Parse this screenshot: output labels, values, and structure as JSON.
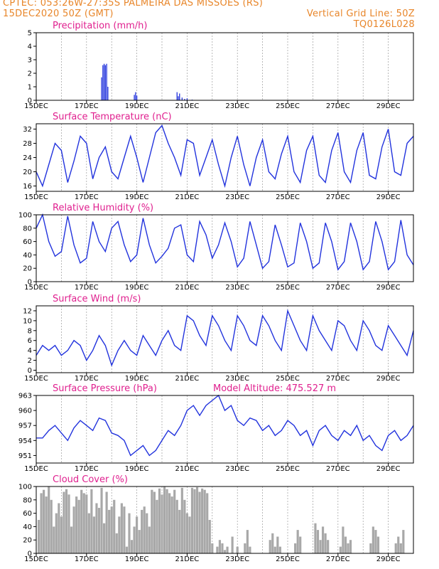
{
  "header": {
    "line1_left": "CPTEC:  053:26W-27:35S  PALMEIRA DAS MISSOES (RS)",
    "line2_left": "15DEC2020 50Z (GMT)",
    "line1_right": "Vertical Grid Line: 50Z",
    "line2_right": "TQ0126L028"
  },
  "colors": {
    "header": "#e8862a",
    "title": "#e0208f",
    "series": "#2233dd",
    "cloud": "#a8a8a8",
    "grid": "#9a9a9a"
  },
  "x_axis": {
    "ticks": [
      "15DEC",
      "17DEC",
      "19DEC",
      "21DEC",
      "23DEC",
      "25DEC",
      "27DEC",
      "29DEC"
    ],
    "start_day": 15,
    "end_day": 30
  },
  "chart_data": [
    {
      "type": "bar",
      "title": "Precipitation (mm/h)",
      "ylim": [
        0,
        5
      ],
      "yticks": [
        0,
        1,
        2,
        3,
        4,
        5
      ],
      "x": [
        17.6,
        17.65,
        17.7,
        17.75,
        17.8,
        17.85,
        18.9,
        18.95,
        19.0,
        20.6,
        20.65,
        20.7,
        20.8,
        20.9,
        21.0,
        21.2
      ],
      "values": [
        1.7,
        2.6,
        2.7,
        2.6,
        2.7,
        1.0,
        0.4,
        0.6,
        0.35,
        0.6,
        0.3,
        0.5,
        0.2,
        0.1,
        0.15,
        0.05
      ]
    },
    {
      "type": "line",
      "title": "Surface Temperature (nC)",
      "ylim": [
        14.5,
        33.5
      ],
      "yticks": [
        16,
        20,
        24,
        28,
        32
      ],
      "x": [
        15.0,
        15.25,
        15.5,
        15.75,
        16.0,
        16.25,
        16.5,
        16.75,
        17.0,
        17.25,
        17.5,
        17.75,
        18.0,
        18.25,
        18.5,
        18.75,
        19.0,
        19.25,
        19.5,
        19.75,
        20.0,
        20.25,
        20.5,
        20.75,
        21.0,
        21.25,
        21.5,
        21.75,
        22.0,
        22.25,
        22.5,
        22.75,
        23.0,
        23.25,
        23.5,
        23.75,
        24.0,
        24.25,
        24.5,
        24.75,
        25.0,
        25.25,
        25.5,
        25.75,
        26.0,
        26.25,
        26.5,
        26.75,
        27.0,
        27.25,
        27.5,
        27.75,
        28.0,
        28.25,
        28.5,
        28.75,
        29.0,
        29.25,
        29.5,
        29.75,
        30.0
      ],
      "values": [
        20,
        16,
        22,
        28,
        26,
        17,
        23,
        30,
        28,
        18,
        24,
        27,
        20,
        18,
        24,
        30,
        24,
        17,
        24,
        31,
        33,
        28,
        24,
        19,
        29,
        28,
        19,
        24,
        29,
        22,
        16,
        24,
        30,
        22,
        16,
        24,
        29,
        20,
        18,
        25,
        30,
        20,
        17,
        26,
        30,
        19,
        17,
        26,
        31,
        20,
        17,
        26,
        31,
        19,
        18,
        27,
        32,
        20,
        19,
        28,
        30
      ]
    },
    {
      "type": "line",
      "title": "Relative Humidity (%)",
      "ylim": [
        0,
        100
      ],
      "yticks": [
        0,
        20,
        40,
        60,
        80,
        100
      ],
      "x": [
        15.0,
        15.25,
        15.5,
        15.75,
        16.0,
        16.25,
        16.5,
        16.75,
        17.0,
        17.25,
        17.5,
        17.75,
        18.0,
        18.25,
        18.5,
        18.75,
        19.0,
        19.25,
        19.5,
        19.75,
        20.0,
        20.25,
        20.5,
        20.75,
        21.0,
        21.25,
        21.5,
        21.75,
        22.0,
        22.25,
        22.5,
        22.75,
        23.0,
        23.25,
        23.5,
        23.75,
        24.0,
        24.25,
        24.5,
        24.75,
        25.0,
        25.25,
        25.5,
        25.75,
        26.0,
        26.25,
        26.5,
        26.75,
        27.0,
        27.25,
        27.5,
        27.75,
        28.0,
        28.25,
        28.5,
        28.75,
        29.0,
        29.25,
        29.5,
        29.75,
        30.0
      ],
      "values": [
        80,
        100,
        60,
        38,
        45,
        98,
        55,
        28,
        35,
        90,
        60,
        45,
        80,
        90,
        55,
        30,
        40,
        95,
        55,
        28,
        38,
        50,
        80,
        85,
        40,
        30,
        90,
        70,
        35,
        55,
        88,
        60,
        22,
        35,
        90,
        55,
        20,
        30,
        85,
        55,
        22,
        28,
        88,
        60,
        20,
        28,
        88,
        60,
        18,
        30,
        88,
        60,
        18,
        30,
        90,
        60,
        18,
        30,
        92,
        40,
        25
      ]
    },
    {
      "type": "line",
      "title": "Surface Wind (m/s)",
      "ylim": [
        -0.5,
        13
      ],
      "yticks": [
        0,
        2,
        4,
        6,
        8,
        10,
        12
      ],
      "x": [
        15.0,
        15.25,
        15.5,
        15.75,
        16.0,
        16.25,
        16.5,
        16.75,
        17.0,
        17.25,
        17.5,
        17.75,
        18.0,
        18.25,
        18.5,
        18.75,
        19.0,
        19.25,
        19.5,
        19.75,
        20.0,
        20.25,
        20.5,
        20.75,
        21.0,
        21.25,
        21.5,
        21.75,
        22.0,
        22.25,
        22.5,
        22.75,
        23.0,
        23.25,
        23.5,
        23.75,
        24.0,
        24.25,
        24.5,
        24.75,
        25.0,
        25.25,
        25.5,
        25.75,
        26.0,
        26.25,
        26.5,
        26.75,
        27.0,
        27.25,
        27.5,
        27.75,
        28.0,
        28.25,
        28.5,
        28.75,
        29.0,
        29.25,
        29.5,
        29.75,
        30.0
      ],
      "values": [
        3,
        5,
        4,
        5,
        3,
        4,
        6,
        5,
        2,
        4,
        7,
        5,
        1,
        4,
        6,
        4,
        3,
        7,
        5,
        3,
        6,
        8,
        5,
        4,
        11,
        10,
        7,
        5,
        11,
        9,
        6,
        4,
        11,
        9,
        6,
        5,
        11,
        9,
        6,
        4,
        12,
        9,
        6,
        4,
        11,
        8,
        6,
        4,
        10,
        9,
        6,
        4,
        10,
        8,
        5,
        4,
        9,
        7,
        5,
        3,
        8
      ]
    },
    {
      "type": "line",
      "title": "Surface Pressure (hPa)",
      "annotation": "Model Altitude: 475.527 m",
      "ylim": [
        949.5,
        963
      ],
      "yticks": [
        951,
        954,
        957,
        960,
        963
      ],
      "yticklabels": [
        "951",
        "954",
        "957",
        "960",
        "963"
      ],
      "x": [
        15.0,
        15.25,
        15.5,
        15.75,
        16.0,
        16.25,
        16.5,
        16.75,
        17.0,
        17.25,
        17.5,
        17.75,
        18.0,
        18.25,
        18.5,
        18.75,
        19.0,
        19.25,
        19.5,
        19.75,
        20.0,
        20.25,
        20.5,
        20.75,
        21.0,
        21.25,
        21.5,
        21.75,
        22.0,
        22.25,
        22.5,
        22.75,
        23.0,
        23.25,
        23.5,
        23.75,
        24.0,
        24.25,
        24.5,
        24.75,
        25.0,
        25.25,
        25.5,
        25.75,
        26.0,
        26.25,
        26.5,
        26.75,
        27.0,
        27.25,
        27.5,
        27.75,
        28.0,
        28.25,
        28.5,
        28.75,
        29.0,
        29.25,
        29.5,
        29.75,
        30.0
      ],
      "values": [
        954.5,
        954.5,
        956,
        957,
        955.5,
        954,
        956.5,
        958,
        957,
        956,
        958.5,
        958,
        955.5,
        955,
        954,
        951,
        952,
        953,
        951,
        952,
        954,
        956,
        955,
        957,
        960,
        961,
        959,
        961,
        962,
        963,
        960,
        961,
        958,
        957,
        958.5,
        958,
        956,
        957,
        955,
        956,
        958,
        957,
        955,
        956,
        953,
        956,
        957,
        955,
        954,
        956,
        955,
        957,
        954,
        955,
        953,
        952,
        955,
        956,
        954,
        955,
        957
      ]
    },
    {
      "type": "bar",
      "title": "Cloud Cover (%)",
      "ylim": [
        0,
        100
      ],
      "yticks": [
        0,
        20,
        40,
        60,
        80,
        100
      ],
      "x": [
        15.1,
        15.2,
        15.3,
        15.4,
        15.5,
        15.6,
        15.7,
        15.8,
        15.9,
        16.0,
        16.1,
        16.2,
        16.3,
        16.4,
        16.5,
        16.6,
        16.7,
        16.8,
        16.9,
        17.0,
        17.1,
        17.2,
        17.3,
        17.4,
        17.5,
        17.6,
        17.7,
        17.8,
        17.9,
        18.0,
        18.1,
        18.2,
        18.3,
        18.4,
        18.5,
        18.6,
        18.7,
        18.8,
        18.9,
        19.0,
        19.1,
        19.2,
        19.3,
        19.4,
        19.5,
        19.6,
        19.7,
        19.8,
        19.9,
        20.0,
        20.1,
        20.2,
        20.3,
        20.4,
        20.5,
        20.6,
        20.7,
        20.8,
        20.9,
        21.0,
        21.1,
        21.2,
        21.3,
        21.4,
        21.5,
        21.6,
        21.7,
        21.8,
        21.9,
        22.0,
        22.2,
        22.3,
        22.4,
        22.5,
        22.6,
        22.8,
        23.0,
        23.3,
        23.4,
        23.5,
        24.3,
        24.4,
        24.5,
        24.6,
        24.7,
        25.3,
        25.4,
        25.5,
        26.1,
        26.2,
        26.3,
        26.4,
        26.5,
        26.6,
        27.1,
        27.2,
        27.3,
        27.4,
        27.5,
        28.3,
        28.4,
        28.5,
        28.6,
        29.3,
        29.4,
        29.5,
        29.6
      ],
      "values": [
        50,
        90,
        95,
        85,
        100,
        80,
        40,
        60,
        75,
        55,
        92,
        96,
        88,
        40,
        70,
        85,
        80,
        95,
        90,
        88,
        60,
        96,
        55,
        75,
        68,
        98,
        45,
        92,
        65,
        70,
        80,
        30,
        55,
        75,
        70,
        10,
        60,
        20,
        40,
        55,
        35,
        65,
        70,
        60,
        40,
        95,
        92,
        80,
        97,
        88,
        100,
        96,
        90,
        85,
        95,
        80,
        65,
        98,
        80,
        60,
        55,
        98,
        96,
        99,
        92,
        97,
        95,
        90,
        50,
        15,
        10,
        20,
        15,
        5,
        10,
        25,
        10,
        15,
        35,
        10,
        20,
        30,
        10,
        25,
        10,
        15,
        35,
        25,
        45,
        35,
        20,
        40,
        30,
        20,
        10,
        40,
        25,
        15,
        20,
        15,
        40,
        35,
        25,
        15,
        25,
        15,
        35
      ]
    }
  ]
}
